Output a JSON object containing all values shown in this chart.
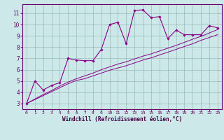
{
  "xlabel": "Windchill (Refroidissement éolien,°C)",
  "background_color": "#cce8e8",
  "grid_color": "#99bbbb",
  "line_color": "#880088",
  "spine_color": "#660066",
  "tick_color": "#660066",
  "label_color": "#440044",
  "x_data": [
    0,
    1,
    2,
    3,
    4,
    5,
    6,
    7,
    8,
    9,
    10,
    11,
    12,
    13,
    14,
    15,
    16,
    17,
    18,
    19,
    20,
    21,
    22,
    23
  ],
  "y_curve": [
    3.0,
    5.0,
    4.2,
    4.6,
    4.85,
    7.0,
    6.85,
    6.8,
    6.8,
    7.8,
    10.0,
    10.2,
    8.3,
    11.25,
    11.3,
    10.6,
    10.7,
    8.75,
    9.5,
    9.1,
    9.1,
    9.1,
    9.9,
    9.7
  ],
  "y_linear1": [
    3.0,
    3.35,
    3.7,
    4.05,
    4.4,
    4.75,
    5.05,
    5.2,
    5.45,
    5.7,
    5.95,
    6.15,
    6.35,
    6.6,
    6.85,
    7.05,
    7.3,
    7.55,
    7.8,
    8.05,
    8.3,
    8.6,
    8.85,
    9.1
  ],
  "y_linear2": [
    3.0,
    3.4,
    3.8,
    4.15,
    4.55,
    4.9,
    5.2,
    5.45,
    5.7,
    6.0,
    6.25,
    6.5,
    6.7,
    6.95,
    7.2,
    7.4,
    7.65,
    7.9,
    8.15,
    8.42,
    8.7,
    8.95,
    9.25,
    9.55
  ],
  "ylim": [
    2.5,
    11.8
  ],
  "xlim": [
    -0.5,
    23.5
  ],
  "yticks": [
    3,
    4,
    5,
    6,
    7,
    8,
    9,
    10,
    11
  ],
  "xticks": [
    0,
    1,
    2,
    3,
    4,
    5,
    6,
    7,
    8,
    9,
    10,
    11,
    12,
    13,
    14,
    15,
    16,
    17,
    18,
    19,
    20,
    21,
    22,
    23
  ]
}
